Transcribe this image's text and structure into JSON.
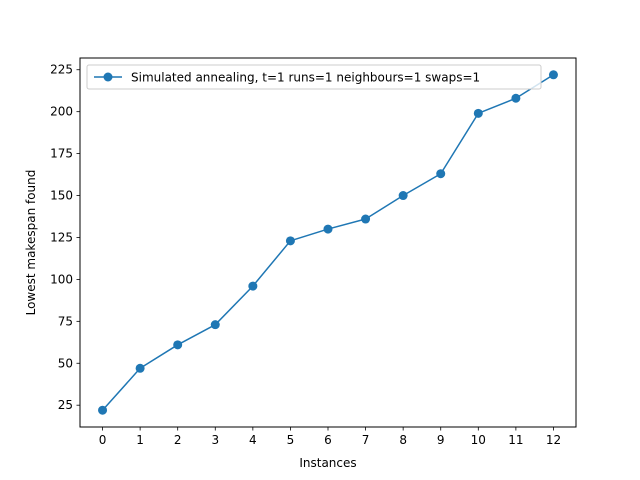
{
  "chart_data": {
    "type": "line",
    "title": "",
    "xlabel": "Instances",
    "ylabel": "Lowest makespan found",
    "x": [
      0,
      1,
      2,
      3,
      4,
      5,
      6,
      7,
      8,
      9,
      10,
      11,
      12
    ],
    "series": [
      {
        "name": "Simulated annealing, t=1 runs=1 neighbours=1 swaps=1",
        "values": [
          22,
          47,
          61,
          73,
          96,
          123,
          130,
          136,
          150,
          163,
          199,
          208,
          222
        ],
        "color": "#1f77b4",
        "marker": "circle"
      }
    ],
    "xticks": [
      "0",
      "1",
      "2",
      "3",
      "4",
      "5",
      "6",
      "7",
      "8",
      "9",
      "10",
      "11",
      "12"
    ],
    "yticks": [
      25,
      50,
      75,
      100,
      125,
      150,
      175,
      200,
      225
    ],
    "xlim": [
      -0.6,
      12.6
    ],
    "ylim": [
      12,
      232
    ],
    "grid": false,
    "legend_position": "top-left"
  }
}
